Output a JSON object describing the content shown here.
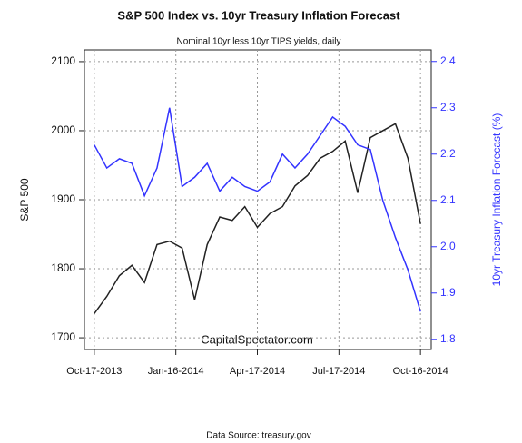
{
  "chart_data": {
    "type": "line",
    "title": "S&P 500 Index vs. 10yr Treasury Inflation Forecast",
    "subtitle": "Nominal 10yr less 10yr TIPS yields, daily",
    "ylabel": "S&P 500",
    "y2label": "10yr Treasury Inflation Forecast (%)",
    "annotation": "CapitalSpectator.com",
    "source": "Data Source: treasury.gov",
    "x": [
      0,
      14,
      28,
      42,
      56,
      70,
      84,
      98,
      112,
      126,
      140,
      154,
      168,
      182,
      196,
      210,
      224,
      238,
      252,
      266,
      280,
      294,
      308,
      322,
      336,
      350,
      364
    ],
    "xlim": [
      -11,
      376
    ],
    "xticks": [
      {
        "value": 0,
        "label": "Oct-17-2013"
      },
      {
        "value": 91,
        "label": "Jan-16-2014"
      },
      {
        "value": 182,
        "label": "Apr-17-2014"
      },
      {
        "value": 273,
        "label": "Jul-17-2014"
      },
      {
        "value": 364,
        "label": "Oct-16-2014"
      }
    ],
    "ylim": [
      1683,
      2117
    ],
    "yticks": [
      1700,
      1800,
      1900,
      2000,
      2100
    ],
    "y2lim": [
      1.778,
      2.425
    ],
    "y2ticks": [
      1.8,
      1.9,
      {
        "value": 2,
        "label": "2.0"
      },
      2.1,
      2.2,
      2.3,
      2.4
    ],
    "grid": true,
    "series": [
      {
        "color": "#222222",
        "values": [
          1735,
          1760,
          1790,
          1805,
          1780,
          1835,
          1840,
          1830,
          1755,
          1835,
          1875,
          1870,
          1890,
          1860,
          1880,
          1890,
          1920,
          1935,
          1960,
          1970,
          1985,
          1910,
          1990,
          2000,
          2010,
          1960,
          1865
        ]
      },
      {
        "color": "#3333ff",
        "axis": "y2",
        "values": [
          2.22,
          2.17,
          2.19,
          2.18,
          2.11,
          2.17,
          2.3,
          2.13,
          2.15,
          2.18,
          2.12,
          2.15,
          2.13,
          2.12,
          2.14,
          2.2,
          2.17,
          2.2,
          2.24,
          2.28,
          2.26,
          2.22,
          2.21,
          2.1,
          2.02,
          1.95,
          1.86
        ]
      }
    ]
  }
}
